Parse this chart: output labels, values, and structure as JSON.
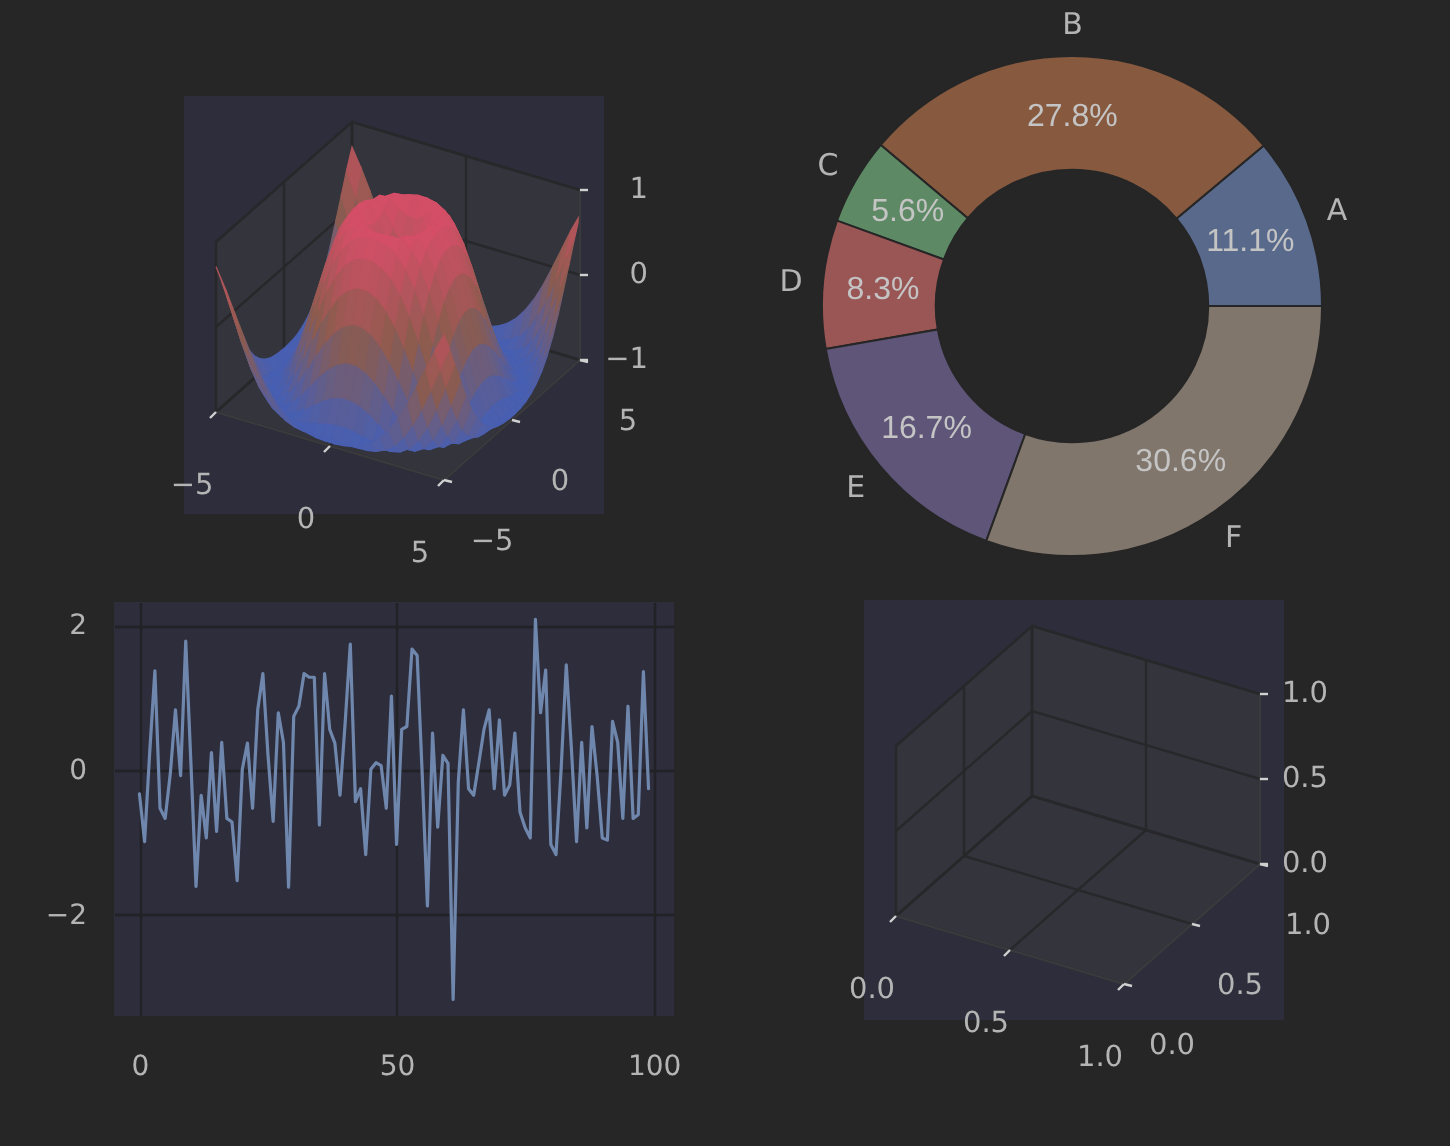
{
  "chart_data": [
    {
      "type": "other",
      "annotations": [
        "−5",
        "0",
        "5",
        "−5",
        "0",
        "5",
        "−1",
        "0",
        "1"
      ]
    },
    {
      "type": "donut",
      "categories": [
        "A",
        "B",
        "C",
        "D",
        "E",
        "F"
      ],
      "values": [
        11.1,
        27.8,
        5.6,
        8.3,
        16.7,
        30.6
      ],
      "colors": [
        "#58698b",
        "#875a40",
        "#5d8a64",
        "#9a5555",
        "#5e5578",
        "#80766c"
      ],
      "value_labels": [
        "11.1%",
        "27.8%",
        "5.6%",
        "8.3%",
        "16.7%",
        "30.6%"
      ]
    },
    {
      "type": "line",
      "x": [
        0,
        1,
        2,
        3,
        4,
        5,
        6,
        7,
        8,
        9,
        10,
        11,
        12,
        13,
        14,
        15,
        16,
        17,
        18,
        19,
        20,
        21,
        22,
        23,
        24,
        25,
        26,
        27,
        28,
        29,
        30,
        31,
        32,
        33,
        34,
        35,
        36,
        37,
        38,
        39,
        40,
        41,
        42,
        43,
        44,
        45,
        46,
        47,
        48,
        49,
        50,
        51,
        52,
        53,
        54,
        55,
        56,
        57,
        58,
        59,
        60,
        61,
        62,
        63,
        64,
        65,
        66,
        67,
        68,
        69,
        70,
        71,
        72,
        73,
        74,
        75,
        76,
        77,
        78,
        79,
        80,
        81,
        82,
        83,
        84,
        85,
        86,
        87,
        88,
        89,
        90,
        91,
        92,
        93,
        94,
        95,
        96,
        97,
        98,
        99
      ],
      "values": [
        -0.33,
        -0.99,
        0.25,
        1.37,
        -0.53,
        -0.67,
        -0.05,
        0.83,
        -0.08,
        1.78,
        0.1,
        -1.61,
        -0.35,
        -0.94,
        0.24,
        -0.85,
        0.38,
        -0.67,
        -0.72,
        -1.53,
        0.01,
        0.37,
        -0.53,
        0.83,
        1.33,
        0.2,
        -0.71,
        0.79,
        0.38,
        -1.62,
        0.74,
        0.88,
        1.33,
        1.28,
        1.28,
        -0.76,
        1.33,
        0.56,
        0.37,
        -0.35,
        0.65,
        1.74,
        -0.44,
        -0.26,
        -1.17,
        0.01,
        0.1,
        0.06,
        -0.53,
        1.02,
        -1.03,
        0.56,
        0.6,
        1.67,
        1.58,
        -0.08,
        -1.88,
        0.51,
        -0.79,
        0.2,
        0.09,
        -3.17,
        -0.17,
        0.83,
        -0.26,
        -0.35,
        0.1,
        0.56,
        0.83,
        -0.26,
        0.69,
        -0.35,
        -0.21,
        0.51,
        -0.58,
        -0.8,
        -0.94,
        2.08,
        0.79,
        1.38,
        -1.03,
        -1.17,
        0.01,
        1.45,
        0.29,
        -0.99,
        0.38,
        -0.8,
        0.6,
        -0.08,
        -0.94,
        -0.97,
        0.67,
        0.38,
        -0.67,
        0.88,
        -0.67,
        -0.62,
        1.36,
        -0.26
      ],
      "color": "#6f87ad",
      "xlim": [
        -4.95,
        103.95
      ],
      "xticks": [
        0,
        50,
        100
      ],
      "ylim": [
        -3.4,
        2.32
      ],
      "yticks": [
        -2,
        0,
        2
      ],
      "grid": true
    },
    {
      "type": "other",
      "annotations": [
        "0.0",
        "0.5",
        "1.0",
        "0.0",
        "0.5",
        "1.0",
        "0.0",
        "0.5",
        "1.0"
      ]
    }
  ]
}
